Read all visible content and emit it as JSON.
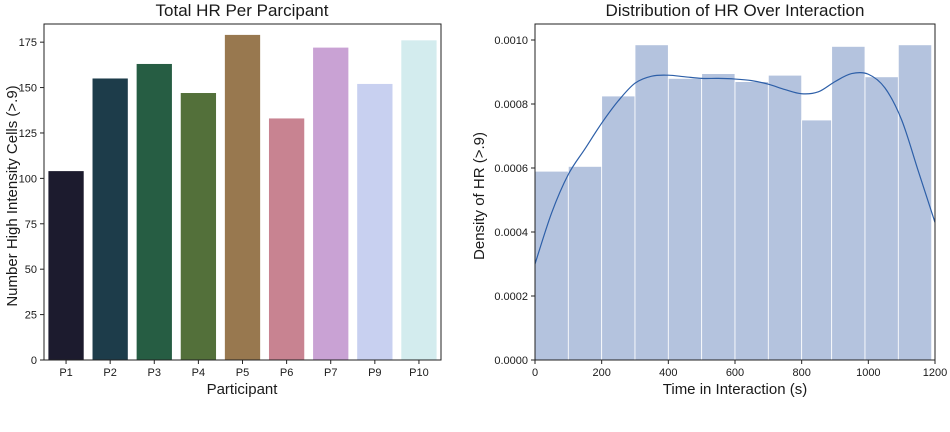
{
  "chart_data": [
    {
      "type": "bar",
      "title": "Total HR Per Parcipant",
      "xlabel": "Participant",
      "ylabel": "Number High Intensity Cells (>.9)",
      "categories": [
        "P1",
        "P2",
        "P3",
        "P4",
        "P5",
        "P6",
        "P7",
        "P9",
        "P10"
      ],
      "values": [
        104,
        155,
        163,
        147,
        179,
        133,
        172,
        152,
        176
      ],
      "colors": [
        "#1c1b2e",
        "#1d3c4a",
        "#265d43",
        "#53703a",
        "#98784f",
        "#c88391",
        "#c9a2d4",
        "#c8d0f0",
        "#d3ecee"
      ],
      "ylim": [
        0,
        185
      ],
      "yticks": [
        0,
        25,
        50,
        75,
        100,
        125,
        150,
        175
      ],
      "grid": false
    },
    {
      "type": "histogram",
      "title": "Distribution of HR Over Interaction",
      "xlabel": "Time in Interaction (s)",
      "ylabel": "Density of HR (>.9)",
      "bin_edges": [
        0,
        100,
        200,
        300,
        400,
        500,
        600,
        700,
        800,
        890,
        990,
        1090,
        1190
      ],
      "densities": [
        0.00059,
        0.000605,
        0.000825,
        0.000985,
        0.00088,
        0.000895,
        0.00087,
        0.00089,
        0.00075,
        0.00098,
        0.000885,
        0.000985
      ],
      "kde": {
        "x": [
          0,
          50,
          100,
          150,
          200,
          250,
          300,
          350,
          400,
          450,
          500,
          550,
          600,
          650,
          700,
          750,
          800,
          850,
          900,
          950,
          1000,
          1050,
          1100,
          1150,
          1200
        ],
        "y": [
          0.0003,
          0.00046,
          0.00058,
          0.00066,
          0.00074,
          0.00081,
          0.000865,
          0.000887,
          0.00089,
          0.000885,
          0.00088,
          0.00088,
          0.000878,
          0.000873,
          0.000862,
          0.000845,
          0.000832,
          0.000838,
          0.00087,
          0.000895,
          0.000893,
          0.00085,
          0.00075,
          0.00059,
          0.00043
        ]
      },
      "bar_color": "#b4c3de",
      "line_color": "#2d5fa8",
      "xlim": [
        0,
        1200
      ],
      "ylim": [
        0,
        0.00105
      ],
      "xticks": [
        0,
        200,
        400,
        600,
        800,
        1000,
        1200
      ],
      "yticks": [
        "0.0000",
        "0.0002",
        "0.0004",
        "0.0006",
        "0.0008",
        "0.0010"
      ],
      "ytick_values": [
        0,
        0.0002,
        0.0004,
        0.0006,
        0.0008,
        0.001
      ],
      "grid": false
    }
  ]
}
